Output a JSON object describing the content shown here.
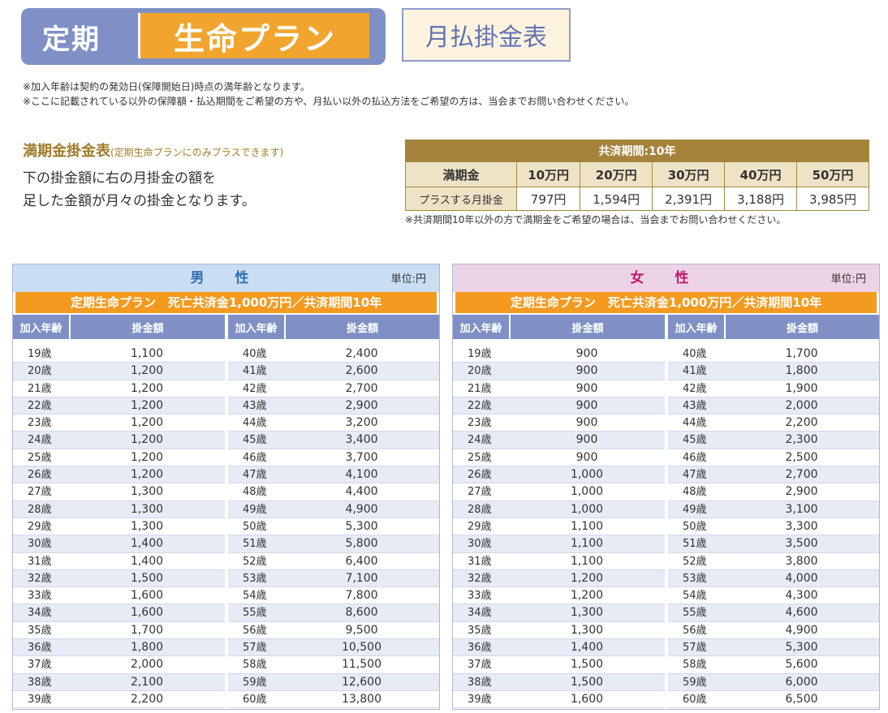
{
  "header": {
    "badge_left": "定期",
    "badge_right": "生命プラン",
    "subtitle": "月払掛金表"
  },
  "notes": [
    "※加入年齢は契約の発効日(保障開始日)時点の満年齢となります。",
    "※ここに記載されている以外の保障額・払込期間をご希望の方や、月払い以外の払込方法をご希望の方は、当会までお問い合わせください。"
  ],
  "maturity": {
    "title": "満期金掛金表",
    "title_note": "(定期生命プランにのみプラスできます)",
    "desc_lines": [
      "下の掛金額に右の月掛金の額を",
      "足した金額が月々の掛金となります。"
    ],
    "table_header": "共済期間:10年",
    "row1_label": "満期金",
    "amounts": [
      "10万円",
      "20万円",
      "30万円",
      "40万円",
      "50万円"
    ],
    "row2_label": "プラスする月掛金",
    "premiums": [
      "797円",
      "1,594円",
      "2,391円",
      "3,188円",
      "3,985円"
    ],
    "note": "※共済期間10年以外の方で満期金をご希望の場合は、当会までお問い合わせください。"
  },
  "male": {
    "title": "男 性",
    "unit": "単位:円",
    "plan": "定期生命プラン　死亡共済金1,000万円／共済期間10年",
    "col_age": "加入年齢",
    "col_amount": "掛金額",
    "left": [
      [
        "19歳",
        "1,100"
      ],
      [
        "20歳",
        "1,200"
      ],
      [
        "21歳",
        "1,200"
      ],
      [
        "22歳",
        "1,200"
      ],
      [
        "23歳",
        "1,200"
      ],
      [
        "24歳",
        "1,200"
      ],
      [
        "25歳",
        "1,200"
      ],
      [
        "26歳",
        "1,200"
      ],
      [
        "27歳",
        "1,300"
      ],
      [
        "28歳",
        "1,300"
      ],
      [
        "29歳",
        "1,300"
      ],
      [
        "30歳",
        "1,400"
      ],
      [
        "31歳",
        "1,400"
      ],
      [
        "32歳",
        "1,500"
      ],
      [
        "33歳",
        "1,600"
      ],
      [
        "34歳",
        "1,600"
      ],
      [
        "35歳",
        "1,700"
      ],
      [
        "36歳",
        "1,800"
      ],
      [
        "37歳",
        "2,000"
      ],
      [
        "38歳",
        "2,100"
      ],
      [
        "39歳",
        "2,200"
      ]
    ],
    "right": [
      [
        "40歳",
        "2,400"
      ],
      [
        "41歳",
        "2,600"
      ],
      [
        "42歳",
        "2,700"
      ],
      [
        "43歳",
        "2,900"
      ],
      [
        "44歳",
        "3,200"
      ],
      [
        "45歳",
        "3,400"
      ],
      [
        "46歳",
        "3,700"
      ],
      [
        "47歳",
        "4,100"
      ],
      [
        "48歳",
        "4,400"
      ],
      [
        "49歳",
        "4,900"
      ],
      [
        "50歳",
        "5,300"
      ],
      [
        "51歳",
        "5,800"
      ],
      [
        "52歳",
        "6,400"
      ],
      [
        "53歳",
        "7,100"
      ],
      [
        "54歳",
        "7,800"
      ],
      [
        "55歳",
        "8,600"
      ],
      [
        "56歳",
        "9,500"
      ],
      [
        "57歳",
        "10,500"
      ],
      [
        "58歳",
        "11,500"
      ],
      [
        "59歳",
        "12,600"
      ],
      [
        "60歳",
        "13,800"
      ]
    ]
  },
  "female": {
    "title": "女 性",
    "unit": "単位:円",
    "plan": "定期生命プラン　死亡共済金1,000万円／共済期間10年",
    "col_age": "加入年齢",
    "col_amount": "掛金額",
    "left": [
      [
        "19歳",
        "900"
      ],
      [
        "20歳",
        "900"
      ],
      [
        "21歳",
        "900"
      ],
      [
        "22歳",
        "900"
      ],
      [
        "23歳",
        "900"
      ],
      [
        "24歳",
        "900"
      ],
      [
        "25歳",
        "900"
      ],
      [
        "26歳",
        "1,000"
      ],
      [
        "27歳",
        "1,000"
      ],
      [
        "28歳",
        "1,000"
      ],
      [
        "29歳",
        "1,100"
      ],
      [
        "30歳",
        "1,100"
      ],
      [
        "31歳",
        "1,100"
      ],
      [
        "32歳",
        "1,200"
      ],
      [
        "33歳",
        "1,200"
      ],
      [
        "34歳",
        "1,300"
      ],
      [
        "35歳",
        "1,300"
      ],
      [
        "36歳",
        "1,400"
      ],
      [
        "37歳",
        "1,500"
      ],
      [
        "38歳",
        "1,500"
      ],
      [
        "39歳",
        "1,600"
      ]
    ],
    "right": [
      [
        "40歳",
        "1,700"
      ],
      [
        "41歳",
        "1,800"
      ],
      [
        "42歳",
        "1,900"
      ],
      [
        "43歳",
        "2,000"
      ],
      [
        "44歳",
        "2,200"
      ],
      [
        "45歳",
        "2,300"
      ],
      [
        "46歳",
        "2,500"
      ],
      [
        "47歳",
        "2,700"
      ],
      [
        "48歳",
        "2,900"
      ],
      [
        "49歳",
        "3,100"
      ],
      [
        "50歳",
        "3,300"
      ],
      [
        "51歳",
        "3,500"
      ],
      [
        "52歳",
        "3,800"
      ],
      [
        "53歳",
        "4,000"
      ],
      [
        "54歳",
        "4,300"
      ],
      [
        "55歳",
        "4,600"
      ],
      [
        "56歳",
        "4,900"
      ],
      [
        "57歳",
        "5,300"
      ],
      [
        "58歳",
        "5,600"
      ],
      [
        "59歳",
        "6,000"
      ],
      [
        "60歳",
        "6,500"
      ]
    ]
  }
}
